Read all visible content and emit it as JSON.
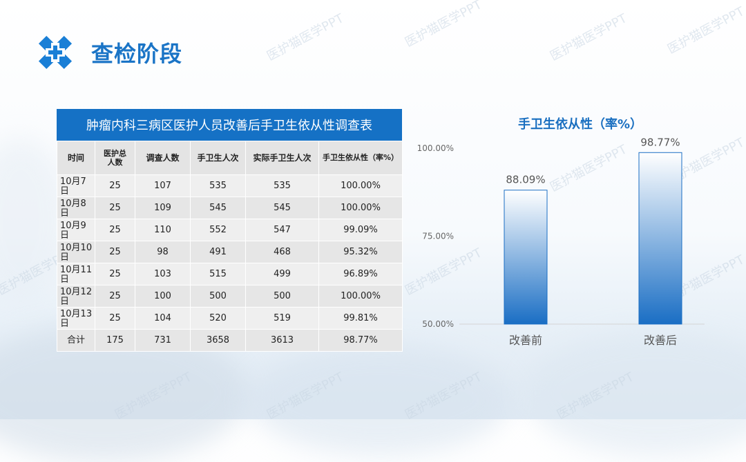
{
  "header": {
    "title": "查检阶段"
  },
  "watermark": "医护猫医学PPT",
  "table": {
    "caption": "肿瘤内科三病区医护人员改善后手卫生依从性调查表",
    "headers": [
      "时间",
      "医护总人数",
      "调查人数",
      "手卫生人次",
      "实际手卫生人次",
      "手卫生依从性（率%）"
    ],
    "rows": [
      [
        "10月7日",
        "25",
        "107",
        "535",
        "535",
        "100.00%"
      ],
      [
        "10月8日",
        "25",
        "109",
        "545",
        "545",
        "100.00%"
      ],
      [
        "10月9日",
        "25",
        "110",
        "552",
        "547",
        "99.09%"
      ],
      [
        "10月10日",
        "25",
        "98",
        "491",
        "468",
        "95.32%"
      ],
      [
        "10月11日",
        "25",
        "103",
        "515",
        "499",
        "96.89%"
      ],
      [
        "10月12日",
        "25",
        "100",
        "500",
        "500",
        "100.00%"
      ],
      [
        "10月13日",
        "25",
        "104",
        "520",
        "519",
        "99.81%"
      ],
      [
        "合计",
        "175",
        "731",
        "3658",
        "3613",
        "98.77%"
      ]
    ]
  },
  "colors": {
    "accent": "#1571c5",
    "bar_top": "#ffffff",
    "bar_bottom": "#1a6ec4"
  },
  "chart_data": {
    "type": "bar",
    "title": "手卫生依从性（率%）",
    "categories": [
      "改善前",
      "改善后"
    ],
    "values": [
      88.09,
      98.77
    ],
    "value_labels": [
      "88.09%",
      "98.77%"
    ],
    "ylim": [
      50,
      100
    ],
    "yticks": [
      50,
      75,
      100
    ],
    "ytick_labels": [
      "50.00%",
      "75.00%",
      "100.00%"
    ],
    "grid": false,
    "legend": "none"
  }
}
